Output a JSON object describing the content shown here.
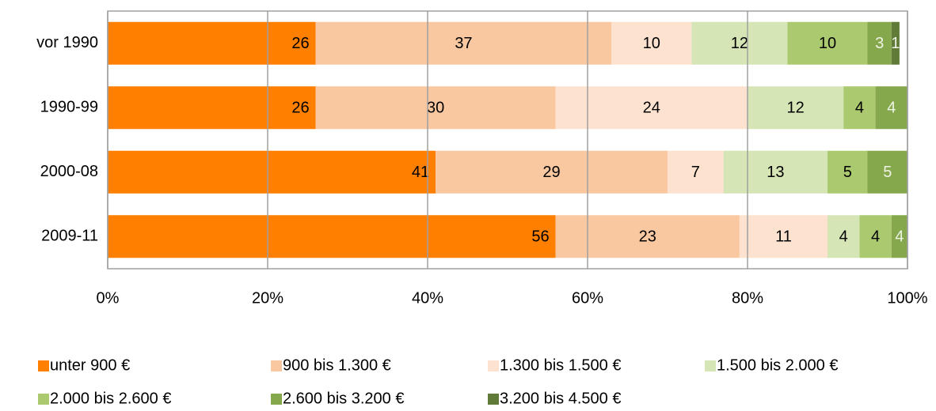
{
  "chart_data": {
    "type": "stacked-barh",
    "categories": [
      "vor 1990",
      "1990-99",
      "2000-08",
      "2009-11"
    ],
    "series": [
      {
        "name": "unter 900 €",
        "color": "#ff7f00",
        "values": [
          26,
          26,
          41,
          56
        ]
      },
      {
        "name": "900 bis 1.300 €",
        "color": "#fac8a0",
        "values": [
          37,
          30,
          29,
          23
        ]
      },
      {
        "name": "1.300 bis 1.500 €",
        "color": "#fde3cf",
        "values": [
          10,
          24,
          7,
          11
        ]
      },
      {
        "name": "1.500 bis 2.000 €",
        "color": "#d5e5b6",
        "values": [
          12,
          12,
          13,
          4
        ]
      },
      {
        "name": "2.000 bis 2.600 €",
        "color": "#abc96e",
        "values": [
          10,
          4,
          5,
          4
        ]
      },
      {
        "name": "2.600 bis 3.200 €",
        "color": "#86a84c",
        "values": [
          3,
          4,
          5,
          4
        ]
      },
      {
        "name": "3.200 bis 4.500 €",
        "color": "#5f7b37",
        "values": [
          1,
          null,
          null,
          null
        ]
      }
    ],
    "xlim": [
      0,
      100
    ],
    "xticks": [
      {
        "value": 0,
        "label": "0%"
      },
      {
        "value": 20,
        "label": "20%"
      },
      {
        "value": 40,
        "label": "40%"
      },
      {
        "value": 60,
        "label": "60%"
      },
      {
        "value": 80,
        "label": "80%"
      },
      {
        "value": 100,
        "label": "100%"
      }
    ],
    "grid": true
  }
}
